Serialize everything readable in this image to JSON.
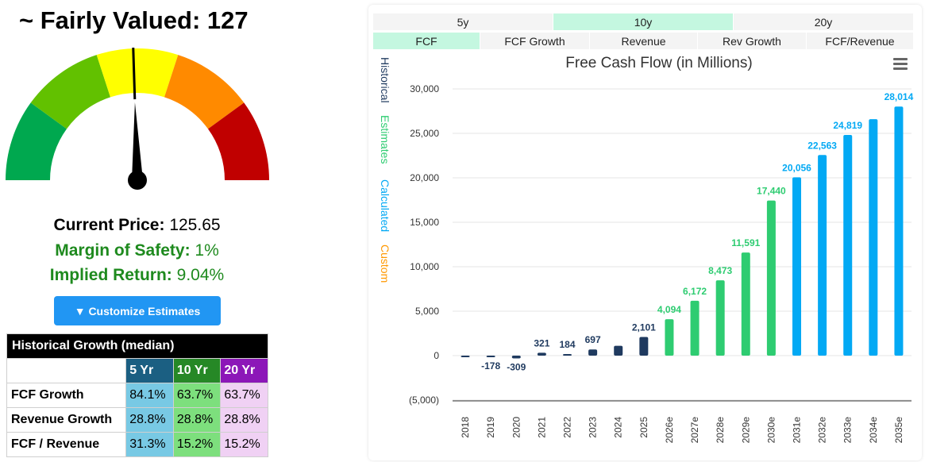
{
  "valuation": {
    "prefix": "~ Fairly Valued:",
    "value": "127"
  },
  "stats": {
    "current_price_label": "Current Price:",
    "current_price_value": "125.65",
    "margin_label": "Margin of Safety:",
    "margin_value": "1%",
    "implied_label": "Implied Return:",
    "implied_value": "9.04%"
  },
  "gauge": {
    "segment_colors": [
      "#00a84f",
      "#62c100",
      "#ffff00",
      "#ff8a00",
      "#c00000"
    ],
    "needle_level": 0.49
  },
  "customize_button": "▼ Customize Estimates",
  "growth_table": {
    "title": "Historical Growth (median)",
    "columns": [
      "5 Yr",
      "10 Yr",
      "20 Yr"
    ],
    "rows": [
      {
        "label": "FCF Growth",
        "values": [
          "84.1%",
          "63.7%",
          "63.7%"
        ]
      },
      {
        "label": "Revenue Growth",
        "values": [
          "28.8%",
          "28.8%",
          "28.8%"
        ]
      },
      {
        "label": "FCF / Revenue",
        "values": [
          "31.3%",
          "15.2%",
          "15.2%"
        ]
      }
    ]
  },
  "period_tabs": [
    {
      "label": "5y",
      "active": false
    },
    {
      "label": "10y",
      "active": true
    },
    {
      "label": "20y",
      "active": false
    }
  ],
  "metric_tabs": [
    {
      "label": "FCF",
      "active": true
    },
    {
      "label": "FCF Growth",
      "active": false
    },
    {
      "label": "Revenue",
      "active": false
    },
    {
      "label": "Rev Growth",
      "active": false
    },
    {
      "label": "FCF/Revenue",
      "active": false
    }
  ],
  "legend": [
    {
      "label": "Historical",
      "color": "#1f3a5f"
    },
    {
      "label": "Estimates",
      "color": "#2ecc71"
    },
    {
      "label": "Calculated",
      "color": "#03a9f4"
    },
    {
      "label": "Custom",
      "color": "#ff9800"
    }
  ],
  "chart_data": {
    "type": "bar",
    "title": "Free Cash Flow (in Millions)",
    "xlabel": "",
    "ylabel": "",
    "ylim": [
      -5000,
      30000
    ],
    "yticks": [
      -5000,
      0,
      5000,
      10000,
      15000,
      20000,
      25000,
      30000
    ],
    "ytick_labels": [
      "(5,000)",
      "0",
      "5,000",
      "10,000",
      "15,000",
      "20,000",
      "25,000",
      "30,000"
    ],
    "grid": true,
    "colors": {
      "Historical": "#1f3a5f",
      "Estimates": "#2ecc71",
      "Calculated": "#03a9f4"
    },
    "categories": [
      "2018",
      "2019",
      "2020",
      "2021",
      "2022",
      "2023",
      "2024",
      "2025",
      "2026e",
      "2027e",
      "2028e",
      "2029e",
      "2030e",
      "2031e",
      "2032e",
      "2033e",
      "2034e",
      "2035e"
    ],
    "values": [
      -60,
      -178,
      -309,
      321,
      184,
      697,
      1100,
      2101,
      4094,
      6172,
      8473,
      11591,
      17440,
      20056,
      22563,
      24819,
      26600,
      28014
    ],
    "types": [
      "Historical",
      "Historical",
      "Historical",
      "Historical",
      "Historical",
      "Historical",
      "Historical",
      "Historical",
      "Estimates",
      "Estimates",
      "Estimates",
      "Estimates",
      "Estimates",
      "Calculated",
      "Calculated",
      "Calculated",
      "Calculated",
      "Calculated"
    ],
    "data_labels": [
      "",
      "-178",
      "-309",
      "321",
      "184",
      "697",
      "",
      "2,101",
      "4,094",
      "6,172",
      "8,473",
      "11,591",
      "17,440",
      "20,056",
      "22,563",
      "24,819",
      "",
      "28,014"
    ]
  }
}
